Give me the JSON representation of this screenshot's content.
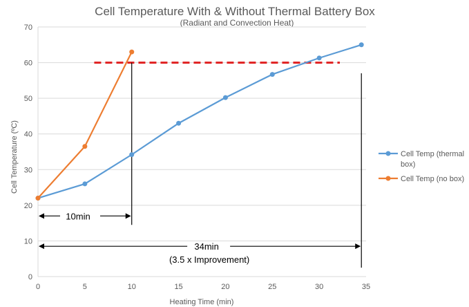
{
  "colors": {
    "series_thermal": "#5B9BD5",
    "series_nobox": "#ED7D31",
    "threshold": "#E02020",
    "grid": "#D9D9D9",
    "annotation": "#000000"
  },
  "chart_data": {
    "type": "line",
    "title": "Cell Temperature With & Without Thermal Battery Box",
    "subtitle": "(Radiant and Convection Heat)",
    "xlabel": "Heating Time (min)",
    "ylabel": "Cell Temperature (ºC)",
    "xlim": [
      0,
      35
    ],
    "ylim": [
      0,
      70
    ],
    "x_ticks": [
      "0",
      "5",
      "10",
      "15",
      "20",
      "25",
      "30",
      "35"
    ],
    "y_ticks": [
      "0",
      "10",
      "20",
      "30",
      "40",
      "50",
      "60",
      "70"
    ],
    "grid": "horizontal",
    "legend_position": "right",
    "series": [
      {
        "name": "Cell Temp (thermal box)",
        "legend_lines": [
          "Cell Temp (thermal",
          "box)"
        ],
        "x": [
          0,
          5,
          10,
          15,
          20,
          25,
          30,
          34.5
        ],
        "y": [
          22,
          26,
          34.2,
          43,
          50.2,
          56.7,
          61.3,
          65
        ]
      },
      {
        "name": "Cell Temp (no box)",
        "legend_lines": [
          "Cell Temp (no box)"
        ],
        "x": [
          0,
          5,
          10
        ],
        "y": [
          22,
          36.5,
          63
        ]
      }
    ],
    "threshold_line": {
      "x_start": 6,
      "x_end": 32.2,
      "y": 60
    },
    "vertical_markers": [
      {
        "x": 10,
        "y_from": 14.5,
        "y_to": 60
      },
      {
        "x": 34.5,
        "y_from": 2.5,
        "y_to": 57
      }
    ],
    "annotations": [
      {
        "label": "10min",
        "x_start": 0,
        "x_end": 10,
        "y": 17
      },
      {
        "label": "34min",
        "sub_label": "(3.5 x Improvement)",
        "x_start": 0,
        "x_end": 34.5,
        "y": 8.5
      }
    ]
  }
}
